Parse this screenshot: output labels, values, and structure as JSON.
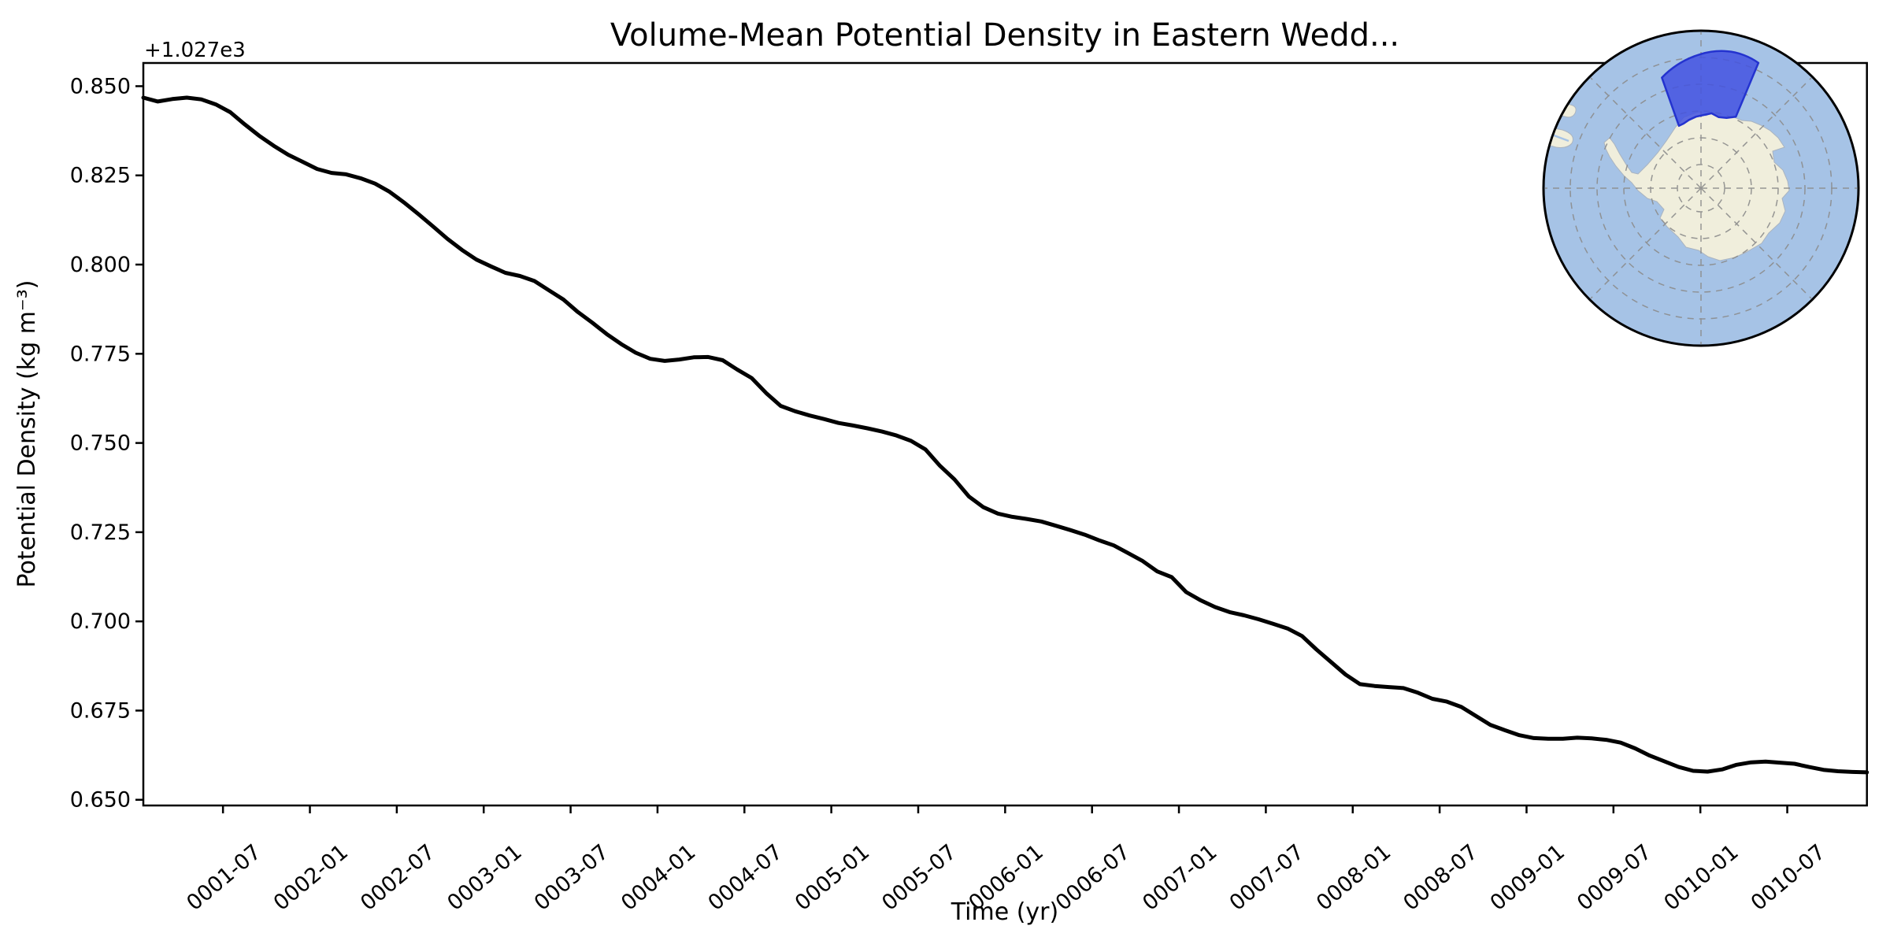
{
  "figure": {
    "title": "Volume-Mean Potential Density in Eastern Wedd...",
    "background_color": "#ffffff"
  },
  "chart_data": {
    "type": "line",
    "title": "Volume-Mean Potential Density in Eastern Wedd...",
    "xlabel": "Time (yr)",
    "ylabel": "Potential Density (kg m⁻³)",
    "y_axis_offset_label": "+1.027e3",
    "grid": false,
    "legend_position": "none",
    "x_tick_labels": [
      "0001-07",
      "0002-01",
      "0002-07",
      "0003-01",
      "0003-07",
      "0004-01",
      "0004-07",
      "0005-01",
      "0005-07",
      "0006-01",
      "0006-07",
      "0007-01",
      "0007-07",
      "0008-01",
      "0008-07",
      "0009-01",
      "0009-07",
      "0010-01",
      "0010-07"
    ],
    "x_tick_month_index": [
      6,
      12,
      18,
      24,
      30,
      36,
      42,
      48,
      54,
      60,
      66,
      72,
      78,
      84,
      90,
      96,
      102,
      108,
      114
    ],
    "y_tick_labels": [
      "0.850",
      "0.825",
      "0.800",
      "0.775",
      "0.750",
      "0.725",
      "0.700",
      "0.675",
      "0.650"
    ],
    "ylim": [
      0.6484,
      0.8565
    ],
    "xlim_months": [
      0.5,
      119.5
    ],
    "time_start": "0001-01",
    "time_step_months": 1,
    "series": [
      {
        "name": "volume-mean-potential-density",
        "color": "#000000",
        "line_width": 5,
        "values": [
          0.8468,
          0.8457,
          0.8464,
          0.8468,
          0.8463,
          0.8449,
          0.8427,
          0.8393,
          0.8361,
          0.8333,
          0.8308,
          0.8288,
          0.8268,
          0.8257,
          0.8253,
          0.8242,
          0.8227,
          0.8204,
          0.8174,
          0.8141,
          0.8107,
          0.8072,
          0.8041,
          0.8014,
          0.7995,
          0.7977,
          0.7968,
          0.7954,
          0.7928,
          0.7902,
          0.7867,
          0.7837,
          0.7805,
          0.7777,
          0.7753,
          0.7736,
          0.773,
          0.7734,
          0.774,
          0.7741,
          0.7732,
          0.7706,
          0.7682,
          0.764,
          0.7604,
          0.7589,
          0.7577,
          0.7567,
          0.7556,
          0.7549,
          0.7541,
          0.7532,
          0.7521,
          0.7506,
          0.7482,
          0.7436,
          0.7398,
          0.735,
          0.732,
          0.7302,
          0.7293,
          0.7287,
          0.728,
          0.7268,
          0.7256,
          0.7243,
          0.7227,
          0.7213,
          0.7191,
          0.7169,
          0.714,
          0.7124,
          0.7082,
          0.7059,
          0.704,
          0.7026,
          0.7017,
          0.7006,
          0.6993,
          0.698,
          0.6959,
          0.6921,
          0.6886,
          0.6851,
          0.6824,
          0.6819,
          0.6816,
          0.6813,
          0.68,
          0.6783,
          0.6775,
          0.676,
          0.6735,
          0.671,
          0.6695,
          0.6681,
          0.6673,
          0.6671,
          0.6671,
          0.6674,
          0.6672,
          0.6668,
          0.666,
          0.6644,
          0.6624,
          0.6608,
          0.6592,
          0.6581,
          0.6579,
          0.6585,
          0.6598,
          0.6605,
          0.6607,
          0.6604,
          0.6601,
          0.6592,
          0.6584,
          0.658,
          0.6578,
          0.6577
        ]
      }
    ]
  },
  "inset_map": {
    "type": "south-polar-stereographic-globe",
    "region_name": "eastern-weddell-highlight",
    "ocean_color": "#a6c3e6",
    "land_color": "#f0eedc",
    "graticule_color": "#8c8c8c",
    "outline_color": "#000000",
    "region_fill_color": "#4352e1",
    "region_border_color": "#2433cf"
  }
}
